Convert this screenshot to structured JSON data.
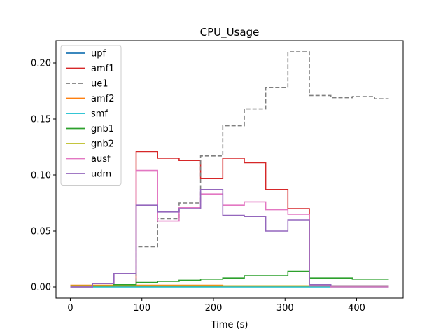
{
  "chart_data": {
    "type": "line",
    "title": "CPU_Usage",
    "xlabel": "Time (s)",
    "ylabel": "",
    "xlim": [
      -20,
      465
    ],
    "ylim": [
      -0.01,
      0.22
    ],
    "x_ticks": [
      0,
      100,
      200,
      300,
      400
    ],
    "y_ticks": [
      0.0,
      0.05,
      0.1,
      0.15,
      0.2
    ],
    "x_tick_labels": [
      "0",
      "100",
      "200",
      "300",
      "400"
    ],
    "y_tick_labels": [
      "0.00",
      "0.05",
      "0.10",
      "0.15",
      "0.20"
    ],
    "grid": false,
    "legend_position": "upper-left",
    "step": "post",
    "x": [
      0,
      31,
      61,
      92,
      122,
      152,
      182,
      213,
      243,
      273,
      304,
      334,
      364,
      394,
      425,
      445
    ],
    "series": [
      {
        "name": "upf",
        "color": "#1f77b4",
        "dash": false,
        "values": [
          0.0005,
          0.0005,
          0.0005,
          0.0005,
          0.0005,
          0.0005,
          0.0005,
          0.0005,
          0.0005,
          0.0005,
          0.0005,
          0.0005,
          0.0005,
          0.0005,
          0.0005,
          0.0005
        ]
      },
      {
        "name": "amf1",
        "color": "#d62728",
        "dash": false,
        "values": [
          0.001,
          0.001,
          0.001,
          0.121,
          0.115,
          0.113,
          0.097,
          0.115,
          0.111,
          0.087,
          0.07,
          0.002,
          0.001,
          0.001,
          0.001,
          0.001
        ]
      },
      {
        "name": "ue1",
        "color": "#7f7f7f",
        "dash": true,
        "values": [
          0.001,
          0.001,
          0.001,
          0.036,
          0.061,
          0.075,
          0.117,
          0.144,
          0.159,
          0.178,
          0.21,
          0.171,
          0.169,
          0.17,
          0.168,
          0.168
        ]
      },
      {
        "name": "amf2",
        "color": "#ff7f0e",
        "dash": false,
        "values": [
          0.0015,
          0.0015,
          0.0015,
          0.0015,
          0.0015,
          0.0015,
          0.0015,
          0.001,
          0.001,
          0.001,
          0.001,
          0.001,
          0.001,
          0.001,
          0.001,
          0.001
        ]
      },
      {
        "name": "smf",
        "color": "#17becf",
        "dash": false,
        "values": [
          0.0,
          0.0,
          0.0,
          0.0,
          0.0,
          0.0,
          0.0,
          0.0,
          0.0,
          0.0,
          0.0,
          0.0,
          0.0,
          0.0,
          0.0,
          0.0
        ]
      },
      {
        "name": "gnb1",
        "color": "#2ca02c",
        "dash": false,
        "values": [
          0.001,
          0.001,
          0.002,
          0.004,
          0.005,
          0.006,
          0.007,
          0.008,
          0.01,
          0.01,
          0.014,
          0.008,
          0.008,
          0.007,
          0.007,
          0.007
        ]
      },
      {
        "name": "gnb2",
        "color": "#bcbd22",
        "dash": false,
        "values": [
          0.001,
          0.001,
          0.001,
          0.001,
          0.001,
          0.001,
          0.001,
          0.001,
          0.001,
          0.001,
          0.001,
          0.001,
          0.001,
          0.001,
          0.001,
          0.001
        ]
      },
      {
        "name": "ausf",
        "color": "#e377c2",
        "dash": false,
        "values": [
          0.0,
          0.003,
          0.012,
          0.104,
          0.059,
          0.071,
          0.083,
          0.073,
          0.076,
          0.069,
          0.065,
          0.001,
          0.0,
          0.0,
          0.0,
          0.0
        ]
      },
      {
        "name": "udm",
        "color": "#9467bd",
        "dash": false,
        "values": [
          0.0,
          0.003,
          0.012,
          0.073,
          0.067,
          0.07,
          0.087,
          0.064,
          0.063,
          0.05,
          0.06,
          0.002,
          0.001,
          0.001,
          0.001,
          0.001
        ]
      }
    ]
  }
}
